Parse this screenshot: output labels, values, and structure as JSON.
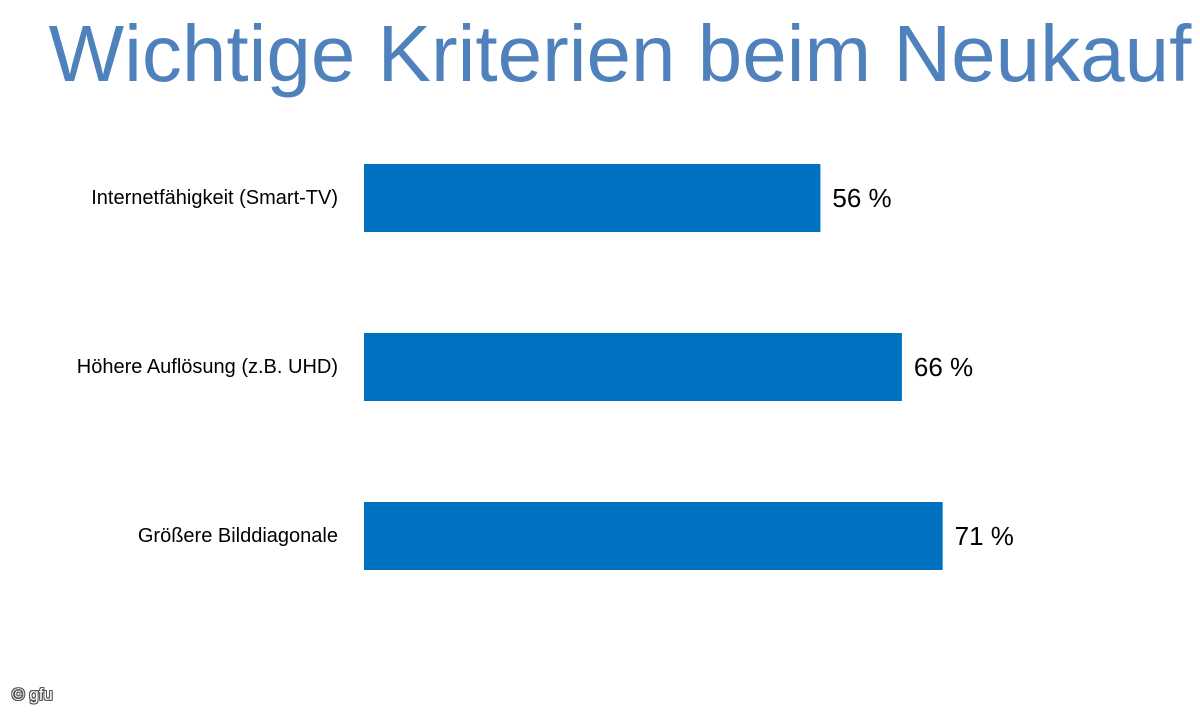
{
  "chart_data": {
    "type": "bar",
    "orientation": "horizontal",
    "title": "Wichtige Kriterien beim Neukauf",
    "categories": [
      "Internetfähigkeit (Smart-TV)",
      "Höhere Auflösung (z.B. UHD)",
      "Größere Bilddiagonale"
    ],
    "values": [
      56,
      66,
      71
    ],
    "value_labels": [
      "56 %",
      "66 %",
      "71 %"
    ],
    "unit": "%",
    "xlim": [
      0,
      100
    ],
    "grid": false,
    "axes_visible": false,
    "legend": "none",
    "bar_color": "#0070c0",
    "title_color": "#4f81bd"
  },
  "watermark": {
    "text": "© gfu"
  }
}
